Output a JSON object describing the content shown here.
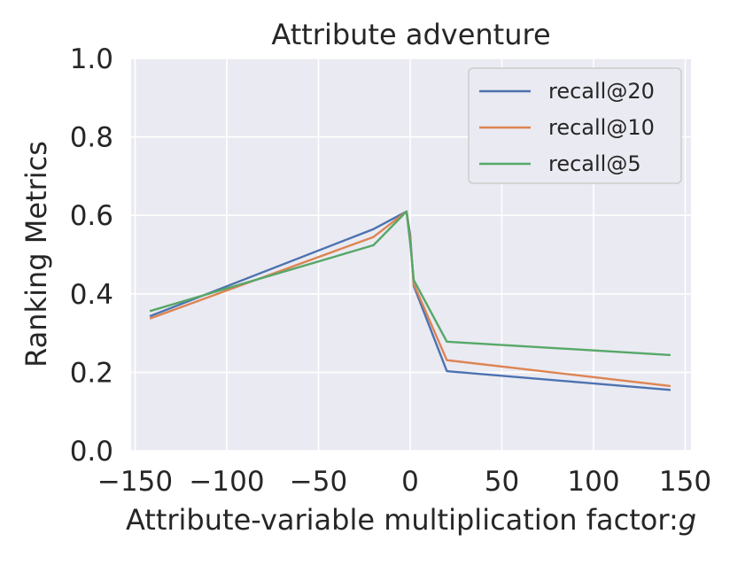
{
  "chart_data": {
    "type": "line",
    "title": "Attribute adventure",
    "xlabel": "Attribute-variable multiplication factor:",
    "xlabel_symbol": "g",
    "ylabel": "Ranking Metrics",
    "xlim": [
      -152,
      152
    ],
    "ylim": [
      0.0,
      1.0
    ],
    "x_ticks": [
      -150,
      -100,
      -50,
      0,
      50,
      100,
      150
    ],
    "x_tick_labels": [
      "−150",
      "−100",
      "−50",
      "0",
      "50",
      "100",
      "150"
    ],
    "y_ticks": [
      0.0,
      0.2,
      0.4,
      0.6,
      0.8,
      1.0
    ],
    "y_tick_labels": [
      "0.0",
      "0.2",
      "0.4",
      "0.6",
      "0.8",
      "1.0"
    ],
    "grid": true,
    "legend_position": "top-right",
    "series": [
      {
        "name": "recall@20",
        "color": "#4c72b0",
        "points": [
          [
            -142,
            0.343
          ],
          [
            -20,
            0.565
          ],
          [
            -2,
            0.61
          ],
          [
            0,
            0.55
          ],
          [
            2,
            0.42
          ],
          [
            20,
            0.203
          ],
          [
            142,
            0.155
          ]
        ]
      },
      {
        "name": "recall@10",
        "color": "#dd8452",
        "points": [
          [
            -142,
            0.337
          ],
          [
            -20,
            0.545
          ],
          [
            -2,
            0.61
          ],
          [
            0,
            0.54
          ],
          [
            2,
            0.425
          ],
          [
            20,
            0.231
          ],
          [
            142,
            0.165
          ]
        ]
      },
      {
        "name": "recall@5",
        "color": "#55a868",
        "points": [
          [
            -142,
            0.356
          ],
          [
            -20,
            0.524
          ],
          [
            -2,
            0.61
          ],
          [
            0,
            0.53
          ],
          [
            2,
            0.435
          ],
          [
            20,
            0.278
          ],
          [
            142,
            0.244
          ]
        ]
      }
    ]
  }
}
